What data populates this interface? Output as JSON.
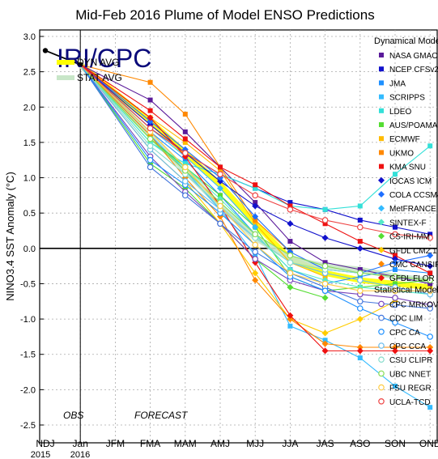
{
  "chart_data": {
    "type": "line",
    "title": "Mid-Feb 2016 Plume of Model ENSO Predictions",
    "ylabel": "NINO3.4 SST Anomaly (°C)",
    "xlabel": "",
    "watermark": "IRI/CPC",
    "obs_label": "OBS",
    "forecast_label": "FORECAST",
    "x": [
      "NDJ",
      "Jan",
      "JFM",
      "FMA",
      "MAM",
      "AMJ",
      "MJJ",
      "JJA",
      "JAS",
      "ASO",
      "SON",
      "OND"
    ],
    "year_labels": [
      "2015",
      "2016"
    ],
    "ylim": [
      -2.5,
      3.0
    ],
    "yticks": [
      "3.0",
      "2.5",
      "2.0",
      "1.5",
      "1.0",
      "0.5",
      "0.0",
      "-0.5",
      "-1.0",
      "-1.5",
      "-2.0",
      "-2.5"
    ],
    "grid": true,
    "observed": [
      2.8,
      2.6
    ],
    "averages": [
      {
        "name": "DYN AVG",
        "color": "#ffff00",
        "values": [
          null,
          2.6,
          null,
          1.8,
          1.35,
          0.9,
          0.35,
          -0.15,
          -0.35,
          -0.45,
          -0.5,
          -0.55
        ]
      },
      {
        "name": "STAT AVG",
        "color": "#c8e6c8",
        "values": [
          null,
          2.6,
          null,
          1.6,
          1.1,
          0.6,
          0.15,
          -0.15,
          -0.25,
          -0.3,
          -0.4,
          -0.45
        ]
      }
    ],
    "legend_dynamical_header": "Dynamical Models",
    "legend_statistical_header": "Statistical Models",
    "series": [
      {
        "name": "NASA GMAO",
        "group": "dyn",
        "color": "#5a1a9a",
        "marker": "square",
        "values": [
          null,
          2.6,
          null,
          2.1,
          1.65,
          1.15,
          0.65,
          0.1,
          -0.2,
          -0.3,
          -0.4,
          -0.5
        ]
      },
      {
        "name": "NCEP CFSv2",
        "group": "dyn",
        "color": "#1111cc",
        "marker": "square",
        "values": [
          null,
          2.6,
          null,
          1.7,
          1.35,
          1.05,
          0.85,
          0.65,
          0.55,
          0.4,
          0.3,
          0.2
        ]
      },
      {
        "name": "JMA",
        "group": "dyn",
        "color": "#1e90ff",
        "marker": "square",
        "values": [
          null,
          2.6,
          null,
          1.65,
          1.25,
          0.75,
          0.2,
          -0.3,
          -0.5,
          -0.4,
          -0.3,
          -0.35
        ]
      },
      {
        "name": "SCRIPPS",
        "group": "dyn",
        "color": "#33bbff",
        "marker": "square",
        "values": [
          null,
          2.6,
          null,
          1.6,
          1.1,
          0.55,
          -0.1,
          -1.1,
          -1.3,
          -1.55,
          -1.95,
          -2.25
        ]
      },
      {
        "name": "LDEO",
        "group": "dyn",
        "color": "#33e0d8",
        "marker": "square",
        "values": [
          null,
          2.6,
          null,
          1.5,
          1.2,
          1.05,
          0.85,
          0.6,
          0.55,
          0.6,
          1.05,
          1.45
        ]
      },
      {
        "name": "AUS/POAMA",
        "group": "dyn",
        "color": "#55dd33",
        "marker": "square",
        "values": [
          null,
          2.6,
          null,
          1.55,
          1.15,
          0.75,
          0.3,
          -0.4,
          -0.6,
          -0.55,
          -0.5,
          -0.45
        ]
      },
      {
        "name": "ECMWF",
        "group": "dyn",
        "color": "#ffbb00",
        "marker": "square",
        "values": [
          null,
          2.6,
          null,
          1.85,
          1.5,
          1.1,
          0.35,
          -0.2,
          -0.4,
          null,
          null,
          null
        ]
      },
      {
        "name": "UKMO",
        "group": "dyn",
        "color": "#ff8800",
        "marker": "square",
        "values": [
          null,
          2.6,
          null,
          2.35,
          1.9,
          1.15,
          0.4,
          -0.05,
          null,
          null,
          null,
          null
        ]
      },
      {
        "name": "KMA SNU",
        "group": "dyn",
        "color": "#ee1111",
        "marker": "square",
        "values": [
          null,
          2.6,
          null,
          1.95,
          1.55,
          1.15,
          0.9,
          0.6,
          0.35,
          0.1,
          -0.1,
          -0.35
        ]
      },
      {
        "name": "IOCAS ICM",
        "group": "dyn",
        "color": "#1111cc",
        "marker": "diamond",
        "values": [
          null,
          2.6,
          null,
          1.75,
          1.35,
          0.95,
          0.6,
          0.35,
          0.15,
          0.0,
          -0.15,
          -0.25
        ]
      },
      {
        "name": "COLA CCSM4",
        "group": "dyn",
        "color": "#1e6fff",
        "marker": "diamond",
        "values": [
          null,
          2.6,
          null,
          1.8,
          1.4,
          1.0,
          0.45,
          -0.05,
          -0.3,
          -0.35,
          -0.2,
          -0.1
        ]
      },
      {
        "name": "MetFRANCE",
        "group": "dyn",
        "color": "#33bbff",
        "marker": "diamond",
        "values": [
          null,
          2.6,
          null,
          1.7,
          1.3,
          0.85,
          0.3,
          null,
          null,
          null,
          null,
          null
        ]
      },
      {
        "name": "SINTEX-F",
        "group": "dyn",
        "color": "#55e8c8",
        "marker": "diamond",
        "values": [
          null,
          2.6,
          null,
          1.5,
          1.15,
          0.7,
          0.2,
          -0.3,
          -0.45,
          -0.55,
          -0.6,
          -0.65
        ]
      },
      {
        "name": "CS-IRI-MM",
        "group": "dyn",
        "color": "#55dd33",
        "marker": "diamond",
        "values": [
          null,
          2.6,
          null,
          1.2,
          0.85,
          0.35,
          -0.15,
          -0.55,
          -0.7,
          null,
          null,
          null
        ]
      },
      {
        "name": "GFDL CM2.1",
        "group": "dyn",
        "color": "#ffcc00",
        "marker": "diamond",
        "values": [
          null,
          2.6,
          null,
          1.4,
          0.95,
          0.35,
          -0.35,
          -1.0,
          -1.2,
          -1.0,
          -0.75,
          null
        ]
      },
      {
        "name": "CMC CANSIP",
        "group": "dyn",
        "color": "#ff8800",
        "marker": "diamond",
        "values": [
          null,
          2.6,
          null,
          1.6,
          1.0,
          0.45,
          -0.45,
          -1.0,
          -1.35,
          -1.4,
          -1.4,
          -1.4
        ]
      },
      {
        "name": "GFDL FLOR",
        "group": "dyn",
        "color": "#ee1111",
        "marker": "diamond",
        "values": [
          null,
          2.6,
          null,
          1.85,
          1.3,
          0.6,
          -0.2,
          -0.95,
          -1.45,
          -1.45,
          -1.45,
          -1.45
        ]
      },
      {
        "name": "CPC MRKOV",
        "group": "stat",
        "color": "#7744bb",
        "marker": "circle",
        "values": [
          null,
          2.6,
          null,
          1.3,
          0.8,
          0.35,
          -0.15,
          -0.45,
          -0.6,
          -0.65,
          -0.7,
          -0.8
        ]
      },
      {
        "name": "CDC LIM",
        "group": "stat",
        "color": "#4477dd",
        "marker": "circle",
        "values": [
          null,
          2.6,
          null,
          1.15,
          0.75,
          0.35,
          -0.05,
          -0.35,
          -0.55,
          -0.75,
          -0.8,
          -0.85
        ]
      },
      {
        "name": "CPC CA",
        "group": "stat",
        "color": "#1e90ff",
        "marker": "circle",
        "values": [
          null,
          2.6,
          null,
          1.25,
          0.9,
          0.5,
          0.05,
          -0.4,
          -0.6,
          -0.85,
          -1.05,
          -1.25
        ]
      },
      {
        "name": "CPC CCA",
        "group": "stat",
        "color": "#66bbee",
        "marker": "circle",
        "values": [
          null,
          2.6,
          null,
          1.4,
          0.95,
          0.55,
          0.15,
          -0.2,
          -0.35,
          -0.45,
          -0.55,
          -0.65
        ]
      },
      {
        "name": "CSU CLIPR",
        "group": "stat",
        "color": "#88ddcc",
        "marker": "circle",
        "values": [
          null,
          2.6,
          null,
          1.45,
          1.05,
          0.6,
          0.15,
          -0.2,
          -0.3,
          -0.35,
          -0.4,
          -0.45
        ]
      },
      {
        "name": "UBC NNET",
        "group": "stat",
        "color": "#88dd55",
        "marker": "circle",
        "values": [
          null,
          2.6,
          null,
          1.55,
          1.1,
          0.65,
          0.2,
          -0.1,
          -0.25,
          -0.35,
          -0.4,
          -0.45
        ]
      },
      {
        "name": "FSU REGR",
        "group": "stat",
        "color": "#ffcc44",
        "marker": "circle",
        "values": [
          null,
          2.6,
          null,
          1.65,
          1.15,
          0.6,
          0.05,
          -0.35,
          -0.5,
          -0.6,
          -0.6,
          -0.6
        ]
      },
      {
        "name": "UCLA-TCD",
        "group": "stat",
        "color": "#ee4444",
        "marker": "circle",
        "values": [
          null,
          2.6,
          null,
          1.7,
          1.35,
          1.05,
          0.75,
          0.55,
          0.4,
          0.3,
          0.2,
          0.15
        ]
      }
    ]
  }
}
